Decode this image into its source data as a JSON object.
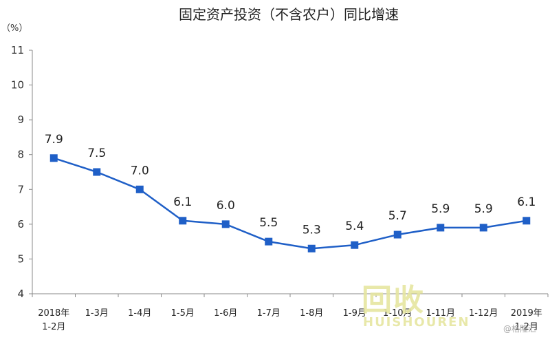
{
  "chart_data": {
    "type": "line",
    "title": "固定资产投资（不含农户）同比增速",
    "ylabel": "（%）",
    "ylim": [
      4,
      11
    ],
    "yticks": [
      "11",
      "10",
      "9",
      "8",
      "7",
      "6",
      "5",
      "4"
    ],
    "categories": [
      [
        "2018年",
        "1-2月"
      ],
      [
        "1-3月"
      ],
      [
        "1-4月"
      ],
      [
        "1-5月"
      ],
      [
        "1-6月"
      ],
      [
        "1-7月"
      ],
      [
        "1-8月"
      ],
      [
        "1-9月"
      ],
      [
        "1-10月"
      ],
      [
        "1-11月"
      ],
      [
        "1-12月"
      ],
      [
        "2019年",
        "1-2月"
      ]
    ],
    "series": [
      {
        "values": [
          7.9,
          7.5,
          7.0,
          6.1,
          6.0,
          5.5,
          5.3,
          5.4,
          5.7,
          5.9,
          5.9,
          6.1
        ]
      }
    ],
    "data_labels": [
      "7.9",
      "7.5",
      "7.0",
      "6.1",
      "6.0",
      "5.5",
      "5.3",
      "5.4",
      "5.7",
      "5.9",
      "5.9",
      "6.1"
    ],
    "line_color": "#1f5fc7",
    "grid": false,
    "legend": "none"
  },
  "watermark": {
    "logo": "回收",
    "sub": "HUISHOUREN",
    "credit": "@格隆汇"
  }
}
